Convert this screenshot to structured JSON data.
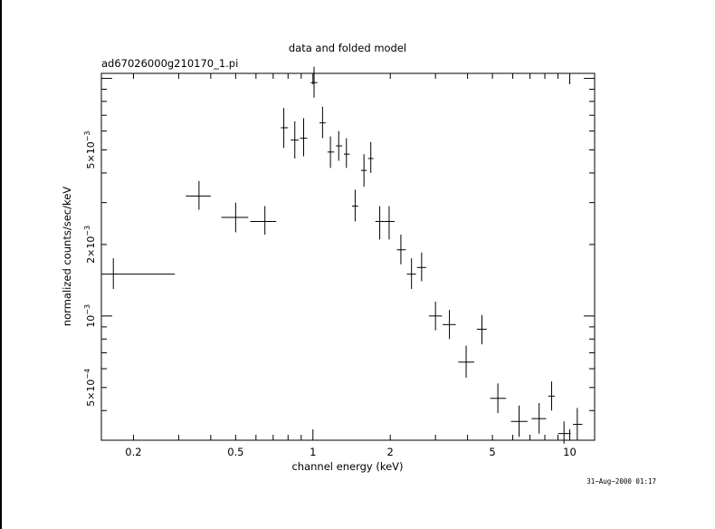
{
  "chart_data": {
    "type": "scatter",
    "title": "data and folded model",
    "subtitle": "ad67026000g210170_1.pi",
    "xlabel": "channel energy (keV)",
    "ylabel": "normalized counts/sec/keV",
    "x_scale": "log",
    "y_scale": "log",
    "xlim": [
      0.15,
      12.5
    ],
    "ylim": [
      0.0003,
      0.0105
    ],
    "x_ticks": [
      {
        "value": 0.2,
        "label": "0.2"
      },
      {
        "value": 0.5,
        "label": "0.5"
      },
      {
        "value": 1,
        "label": "1"
      },
      {
        "value": 2,
        "label": "2"
      },
      {
        "value": 5,
        "label": "5"
      },
      {
        "value": 10,
        "label": "10"
      }
    ],
    "y_ticks": [
      {
        "value": 0.0005,
        "mant": "5×10",
        "exp": "−4"
      },
      {
        "value": 0.001,
        "mant": "10",
        "exp": "−3"
      },
      {
        "value": 0.002,
        "mant": "2×10",
        "exp": "−3"
      },
      {
        "value": 0.005,
        "mant": "5×10",
        "exp": "−3"
      }
    ],
    "grid": false,
    "series": [
      {
        "points": [
          {
            "x": 0.167,
            "xlo": 0.15,
            "xhi": 0.29,
            "y": 0.0015,
            "ylo": 0.0013,
            "yhi": 0.00175
          },
          {
            "x": 0.36,
            "xlo": 0.32,
            "xhi": 0.4,
            "y": 0.0032,
            "ylo": 0.0028,
            "yhi": 0.0037
          },
          {
            "x": 0.5,
            "xlo": 0.44,
            "xhi": 0.56,
            "y": 0.0026,
            "ylo": 0.00225,
            "yhi": 0.003
          },
          {
            "x": 0.65,
            "xlo": 0.57,
            "xhi": 0.72,
            "y": 0.0025,
            "ylo": 0.0022,
            "yhi": 0.0029
          },
          {
            "x": 0.77,
            "xlo": 0.75,
            "xhi": 0.8,
            "y": 0.0062,
            "ylo": 0.0051,
            "yhi": 0.0075
          },
          {
            "x": 0.85,
            "xlo": 0.82,
            "xhi": 0.88,
            "y": 0.0055,
            "ylo": 0.0046,
            "yhi": 0.0066
          },
          {
            "x": 0.92,
            "xlo": 0.89,
            "xhi": 0.95,
            "y": 0.0056,
            "ylo": 0.0047,
            "yhi": 0.0068
          },
          {
            "x": 1.01,
            "xlo": 0.98,
            "xhi": 1.04,
            "y": 0.0096,
            "ylo": 0.0083,
            "yhi": 0.0112
          },
          {
            "x": 1.09,
            "xlo": 1.06,
            "xhi": 1.12,
            "y": 0.0065,
            "ylo": 0.0056,
            "yhi": 0.0076
          },
          {
            "x": 1.17,
            "xlo": 1.14,
            "xhi": 1.21,
            "y": 0.0049,
            "ylo": 0.0042,
            "yhi": 0.0057
          },
          {
            "x": 1.26,
            "xlo": 1.23,
            "xhi": 1.3,
            "y": 0.0052,
            "ylo": 0.0045,
            "yhi": 0.006
          },
          {
            "x": 1.35,
            "xlo": 1.32,
            "xhi": 1.39,
            "y": 0.0048,
            "ylo": 0.0042,
            "yhi": 0.0056
          },
          {
            "x": 1.46,
            "xlo": 1.42,
            "xhi": 1.5,
            "y": 0.0029,
            "ylo": 0.0025,
            "yhi": 0.0034
          },
          {
            "x": 1.58,
            "xlo": 1.54,
            "xhi": 1.62,
            "y": 0.0041,
            "ylo": 0.0035,
            "yhi": 0.0048
          },
          {
            "x": 1.68,
            "xlo": 1.64,
            "xhi": 1.72,
            "y": 0.0046,
            "ylo": 0.004,
            "yhi": 0.0054
          },
          {
            "x": 1.82,
            "xlo": 1.75,
            "xhi": 1.9,
            "y": 0.0025,
            "ylo": 0.0021,
            "yhi": 0.0029
          },
          {
            "x": 1.98,
            "xlo": 1.9,
            "xhi": 2.08,
            "y": 0.0025,
            "ylo": 0.0021,
            "yhi": 0.0029
          },
          {
            "x": 2.2,
            "xlo": 2.12,
            "xhi": 2.3,
            "y": 0.0019,
            "ylo": 0.00165,
            "yhi": 0.0022
          },
          {
            "x": 2.42,
            "xlo": 2.32,
            "xhi": 2.52,
            "y": 0.0015,
            "ylo": 0.0013,
            "yhi": 0.00175
          },
          {
            "x": 2.65,
            "xlo": 2.54,
            "xhi": 2.76,
            "y": 0.0016,
            "ylo": 0.0014,
            "yhi": 0.00185
          },
          {
            "x": 3.0,
            "xlo": 2.83,
            "xhi": 3.18,
            "y": 0.001,
            "ylo": 0.00087,
            "yhi": 0.00115
          },
          {
            "x": 3.4,
            "xlo": 3.2,
            "xhi": 3.6,
            "y": 0.00092,
            "ylo": 0.0008,
            "yhi": 0.00106
          },
          {
            "x": 3.95,
            "xlo": 3.68,
            "xhi": 4.25,
            "y": 0.00064,
            "ylo": 0.00055,
            "yhi": 0.00075
          },
          {
            "x": 4.55,
            "xlo": 4.35,
            "xhi": 4.75,
            "y": 0.00088,
            "ylo": 0.00076,
            "yhi": 0.00101
          },
          {
            "x": 5.25,
            "xlo": 4.9,
            "xhi": 5.65,
            "y": 0.00045,
            "ylo": 0.00039,
            "yhi": 0.00052
          },
          {
            "x": 6.35,
            "xlo": 5.9,
            "xhi": 6.85,
            "y": 0.00036,
            "ylo": 0.00031,
            "yhi": 0.00042
          },
          {
            "x": 7.6,
            "xlo": 7.1,
            "xhi": 8.1,
            "y": 0.00037,
            "ylo": 0.00032,
            "yhi": 0.00043
          },
          {
            "x": 8.5,
            "xlo": 8.25,
            "xhi": 8.75,
            "y": 0.00046,
            "ylo": 0.0004,
            "yhi": 0.00053
          },
          {
            "x": 9.5,
            "xlo": 9.0,
            "xhi": 10.1,
            "y": 0.00032,
            "ylo": 0.00029,
            "yhi": 0.00036
          },
          {
            "x": 10.7,
            "xlo": 10.3,
            "xhi": 11.2,
            "y": 0.00035,
            "ylo": 0.0003,
            "yhi": 0.00041
          }
        ]
      }
    ]
  },
  "footer": {
    "timestamp": "31−Aug−2000 01:17"
  }
}
